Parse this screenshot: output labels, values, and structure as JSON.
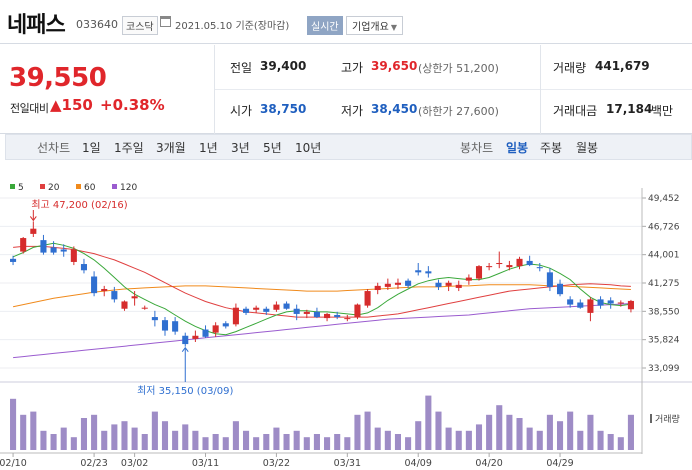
{
  "header": {
    "name": "네패스",
    "code": "033640",
    "market": "코스닥",
    "date": "2021.05.10",
    "basis": "기준(장마감)",
    "realtime": "실시간",
    "company_info": "기업개요"
  },
  "summary": {
    "price": "39,550",
    "change_label": "전일대비",
    "change_arrow": "▲",
    "change": "150",
    "change_pct": "+0.38%",
    "prev_close_label": "전일",
    "prev_close": "39,400",
    "high_label": "고가",
    "high": "39,650",
    "upper_limit_label": "(상한가",
    "upper_limit": "51,200)",
    "volume_label": "거래량",
    "volume": "441,679",
    "open_label": "시가",
    "open": "38,750",
    "low_label": "저가",
    "low": "38,450",
    "lower_limit_label": "(하한가",
    "lower_limit": "27,600)",
    "amount_label": "거래대금",
    "amount": "17,184",
    "amount_unit": "백만"
  },
  "tabs": {
    "line": "선차트",
    "d1": "1일",
    "w1": "1주일",
    "m3": "3개월",
    "y1": "1년",
    "y3": "3년",
    "y5": "5년",
    "y10": "10년",
    "candle": "봉차트",
    "daily": "일봉",
    "weekly": "주봉",
    "monthly": "월봉"
  },
  "colors": {
    "up": "#d62c2c",
    "down": "#2f6fd0",
    "ma5": "#3aa83a",
    "ma20": "#e04040",
    "ma60": "#f08a1c",
    "ma120": "#9a5ccf",
    "volume": "#9e8cc6"
  },
  "chart_data": {
    "type": "candlestick",
    "legend": [
      {
        "label": "5",
        "color": "#3aa83a"
      },
      {
        "label": "20",
        "color": "#e04040"
      },
      {
        "label": "60",
        "color": "#f08a1c"
      },
      {
        "label": "120",
        "color": "#9a5ccf"
      }
    ],
    "y_ticks": [
      "49,452",
      "46,726",
      "44,001",
      "41,275",
      "38,550",
      "35,824",
      "33,099"
    ],
    "ylim": [
      33099,
      49452
    ],
    "x_ticks": [
      {
        "label": "02/10",
        "i": 0
      },
      {
        "label": "02/23",
        "i": 8
      },
      {
        "label": "03/02",
        "i": 12
      },
      {
        "label": "03/11",
        "i": 19
      },
      {
        "label": "03/22",
        "i": 26
      },
      {
        "label": "03/31",
        "i": 33
      },
      {
        "label": "04/09",
        "i": 40
      },
      {
        "label": "04/20",
        "i": 47
      },
      {
        "label": "04/29",
        "i": 54
      }
    ],
    "max_label": "최고 47,200 (02/16)",
    "min_label": "최저 35,150 (03/09)",
    "volume_label": "거래량",
    "candles": [
      {
        "o": 43600,
        "h": 43900,
        "l": 43000,
        "c": 43300
      },
      {
        "o": 44300,
        "h": 45700,
        "l": 44100,
        "c": 45600
      },
      {
        "o": 46000,
        "h": 47200,
        "l": 45700,
        "c": 46500
      },
      {
        "o": 45400,
        "h": 45900,
        "l": 44000,
        "c": 44200
      },
      {
        "o": 44700,
        "h": 45300,
        "l": 44000,
        "c": 44200
      },
      {
        "o": 44500,
        "h": 45000,
        "l": 43800,
        "c": 44300
      },
      {
        "o": 43300,
        "h": 44800,
        "l": 43000,
        "c": 44500
      },
      {
        "o": 43100,
        "h": 43600,
        "l": 42200,
        "c": 42500
      },
      {
        "o": 41900,
        "h": 42400,
        "l": 40000,
        "c": 40300
      },
      {
        "o": 40500,
        "h": 41000,
        "l": 40000,
        "c": 40700
      },
      {
        "o": 40500,
        "h": 40900,
        "l": 39400,
        "c": 39700
      },
      {
        "o": 38800,
        "h": 39600,
        "l": 38600,
        "c": 39500
      },
      {
        "o": 39800,
        "h": 40500,
        "l": 39100,
        "c": 40000
      },
      {
        "o": 38900,
        "h": 39100,
        "l": 38700,
        "c": 38900
      },
      {
        "o": 38000,
        "h": 38600,
        "l": 37100,
        "c": 37700
      },
      {
        "o": 37700,
        "h": 38000,
        "l": 36200,
        "c": 36700
      },
      {
        "o": 37600,
        "h": 38000,
        "l": 36300,
        "c": 36600
      },
      {
        "o": 36200,
        "h": 36500,
        "l": 35150,
        "c": 35400
      },
      {
        "o": 35900,
        "h": 36700,
        "l": 35600,
        "c": 36200
      },
      {
        "o": 36800,
        "h": 37200,
        "l": 36000,
        "c": 36100
      },
      {
        "o": 36500,
        "h": 37500,
        "l": 36100,
        "c": 37200
      },
      {
        "o": 37400,
        "h": 37600,
        "l": 36900,
        "c": 37100
      },
      {
        "o": 37300,
        "h": 39300,
        "l": 37100,
        "c": 38900
      },
      {
        "o": 38800,
        "h": 39000,
        "l": 38200,
        "c": 38400
      },
      {
        "o": 38700,
        "h": 39100,
        "l": 38400,
        "c": 38900
      },
      {
        "o": 38800,
        "h": 39000,
        "l": 38200,
        "c": 38500
      },
      {
        "o": 38700,
        "h": 39500,
        "l": 38500,
        "c": 39200
      },
      {
        "o": 39300,
        "h": 39500,
        "l": 38700,
        "c": 38800
      },
      {
        "o": 38800,
        "h": 39200,
        "l": 37700,
        "c": 38300
      },
      {
        "o": 38300,
        "h": 38700,
        "l": 37900,
        "c": 38500
      },
      {
        "o": 38500,
        "h": 38900,
        "l": 37900,
        "c": 38000
      },
      {
        "o": 37900,
        "h": 38400,
        "l": 37600,
        "c": 38300
      },
      {
        "o": 38200,
        "h": 38500,
        "l": 37800,
        "c": 38000
      },
      {
        "o": 37800,
        "h": 38200,
        "l": 37600,
        "c": 37900
      },
      {
        "o": 38000,
        "h": 39300,
        "l": 37800,
        "c": 39200
      },
      {
        "o": 39100,
        "h": 40700,
        "l": 38900,
        "c": 40500
      },
      {
        "o": 40600,
        "h": 41300,
        "l": 40200,
        "c": 41000
      },
      {
        "o": 40900,
        "h": 41700,
        "l": 40600,
        "c": 41200
      },
      {
        "o": 41100,
        "h": 41700,
        "l": 40700,
        "c": 41300
      },
      {
        "o": 41500,
        "h": 41700,
        "l": 40800,
        "c": 41000
      },
      {
        "o": 42500,
        "h": 43200,
        "l": 42000,
        "c": 42300
      },
      {
        "o": 42400,
        "h": 42900,
        "l": 41800,
        "c": 42200
      },
      {
        "o": 41300,
        "h": 41600,
        "l": 40600,
        "c": 40900
      },
      {
        "o": 41000,
        "h": 41500,
        "l": 40500,
        "c": 41300
      },
      {
        "o": 40800,
        "h": 41500,
        "l": 40500,
        "c": 41100
      },
      {
        "o": 41500,
        "h": 42100,
        "l": 41100,
        "c": 41800
      },
      {
        "o": 41700,
        "h": 43000,
        "l": 41500,
        "c": 42900
      },
      {
        "o": 42800,
        "h": 43200,
        "l": 42500,
        "c": 42900
      },
      {
        "o": 43100,
        "h": 44300,
        "l": 42700,
        "c": 43200
      },
      {
        "o": 42800,
        "h": 43400,
        "l": 42500,
        "c": 43000
      },
      {
        "o": 42900,
        "h": 43800,
        "l": 42600,
        "c": 43600
      },
      {
        "o": 43400,
        "h": 43900,
        "l": 42900,
        "c": 43000
      },
      {
        "o": 42800,
        "h": 43200,
        "l": 42400,
        "c": 42700
      },
      {
        "o": 42300,
        "h": 42700,
        "l": 40500,
        "c": 40900
      },
      {
        "o": 41200,
        "h": 41600,
        "l": 40000,
        "c": 40200
      },
      {
        "o": 39700,
        "h": 40000,
        "l": 38900,
        "c": 39200
      },
      {
        "o": 39400,
        "h": 39700,
        "l": 38800,
        "c": 38900
      },
      {
        "o": 38400,
        "h": 39900,
        "l": 37600,
        "c": 39700
      },
      {
        "o": 39700,
        "h": 40000,
        "l": 38800,
        "c": 39100
      },
      {
        "o": 39600,
        "h": 39900,
        "l": 38800,
        "c": 39300
      },
      {
        "o": 39400,
        "h": 39600,
        "l": 39000,
        "c": 39400
      },
      {
        "o": 38750,
        "h": 39650,
        "l": 38450,
        "c": 39550
      }
    ],
    "volumes": [
      0.8,
      0.55,
      0.6,
      0.3,
      0.25,
      0.35,
      0.2,
      0.5,
      0.55,
      0.3,
      0.4,
      0.45,
      0.35,
      0.25,
      0.6,
      0.45,
      0.3,
      0.4,
      0.3,
      0.2,
      0.25,
      0.2,
      0.45,
      0.3,
      0.2,
      0.25,
      0.35,
      0.25,
      0.3,
      0.2,
      0.25,
      0.2,
      0.25,
      0.2,
      0.55,
      0.6,
      0.35,
      0.3,
      0.25,
      0.2,
      0.45,
      0.85,
      0.6,
      0.35,
      0.3,
      0.3,
      0.4,
      0.55,
      0.7,
      0.55,
      0.5,
      0.35,
      0.3,
      0.55,
      0.45,
      0.6,
      0.3,
      0.55,
      0.3,
      0.25,
      0.2,
      0.55
    ],
    "ma5": [
      43800,
      44200,
      44700,
      44900,
      45100,
      44900,
      44600,
      44100,
      43500,
      42700,
      41800,
      40900,
      40200,
      39700,
      39200,
      38800,
      38200,
      37600,
      37100,
      36700,
      36400,
      36300,
      36600,
      37000,
      37400,
      37800,
      38200,
      38500,
      38600,
      38600,
      38500,
      38500,
      38400,
      38300,
      38200,
      38400,
      38900,
      39600,
      40200,
      40700,
      41200,
      41500,
      41700,
      41800,
      41700,
      41600,
      41600,
      41800,
      42200,
      42600,
      42900,
      43100,
      43000,
      42700,
      42200,
      41600,
      40700,
      39900,
      39400,
      39200,
      39100,
      39250
    ],
    "ma20": [
      44700,
      44800,
      44800,
      44800,
      44700,
      44600,
      44500,
      44300,
      44100,
      43800,
      43500,
      43100,
      42700,
      42300,
      41800,
      41300,
      40800,
      40300,
      39900,
      39500,
      39200,
      38900,
      38700,
      38500,
      38400,
      38300,
      38200,
      38100,
      38000,
      38000,
      38000,
      38000,
      38000,
      38000,
      38000,
      38000,
      38100,
      38200,
      38300,
      38500,
      38700,
      38900,
      39100,
      39300,
      39500,
      39700,
      39900,
      40100,
      40300,
      40500,
      40600,
      40700,
      40800,
      40900,
      41000,
      41100,
      41150,
      41200,
      41150,
      41100,
      41000,
      40950
    ],
    "ma60": [
      39000,
      39200,
      39400,
      39600,
      39800,
      39950,
      40100,
      40250,
      40400,
      40500,
      40600,
      40700,
      40750,
      40800,
      40850,
      40900,
      40950,
      41000,
      41000,
      41000,
      40950,
      40900,
      40850,
      40800,
      40750,
      40700,
      40650,
      40600,
      40550,
      40500,
      40500,
      40500,
      40500,
      40550,
      40600,
      40650,
      40700,
      40750,
      40800,
      40850,
      40900,
      40900,
      40900,
      40950,
      41000,
      41000,
      41050,
      41100,
      41100,
      41100,
      41100,
      41100,
      41050,
      41000,
      41000,
      40950,
      40900,
      40850,
      40800,
      40750,
      40700,
      40650
    ],
    "ma120": [
      34100,
      34200,
      34300,
      34400,
      34500,
      34600,
      34700,
      34800,
      34900,
      35000,
      35100,
      35200,
      35300,
      35400,
      35500,
      35600,
      35700,
      35800,
      35900,
      36000,
      36100,
      36200,
      36300,
      36400,
      36500,
      36600,
      36700,
      36800,
      36900,
      37000,
      37100,
      37200,
      37300,
      37400,
      37500,
      37600,
      37700,
      37800,
      37850,
      37900,
      37950,
      38000,
      38050,
      38100,
      38150,
      38200,
      38300,
      38400,
      38500,
      38600,
      38700,
      38800,
      38850,
      38900,
      38950,
      39000,
      39050,
      39100,
      39150,
      39200,
      39250,
      39300
    ]
  }
}
